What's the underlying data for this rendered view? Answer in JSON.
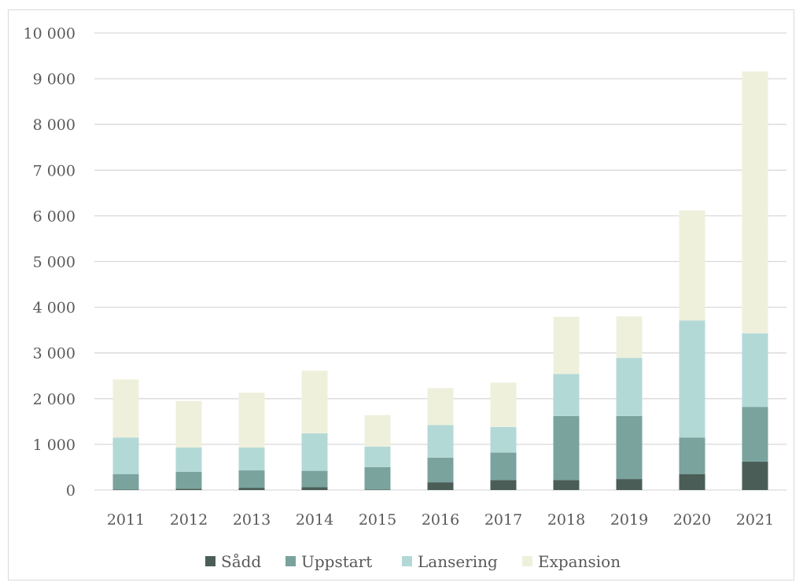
{
  "chart_data": {
    "type": "bar",
    "stacked": true,
    "categories": [
      "2011",
      "2012",
      "2013",
      "2014",
      "2015",
      "2016",
      "2017",
      "2018",
      "2019",
      "2020",
      "2021"
    ],
    "series": [
      {
        "name": "Sådd",
        "color": "#4a5e57",
        "values": [
          10,
          30,
          50,
          60,
          10,
          170,
          220,
          220,
          240,
          350,
          620
        ]
      },
      {
        "name": "Uppstart",
        "color": "#7aa39e",
        "values": [
          340,
          370,
          380,
          360,
          490,
          540,
          600,
          1400,
          1380,
          800,
          1200
        ]
      },
      {
        "name": "Lansering",
        "color": "#b3d9d7",
        "values": [
          800,
          530,
          500,
          820,
          450,
          710,
          560,
          920,
          1270,
          2560,
          1610
        ]
      },
      {
        "name": "Expansion",
        "color": "#eef0dc",
        "values": [
          1270,
          1020,
          1200,
          1370,
          690,
          810,
          970,
          1250,
          910,
          2410,
          5730
        ]
      }
    ],
    "ylim": [
      0,
      10000
    ],
    "yticks": [
      0,
      1000,
      2000,
      3000,
      4000,
      5000,
      6000,
      7000,
      8000,
      9000,
      10000
    ],
    "ytick_labels": [
      "0",
      "1 000",
      "2 000",
      "3 000",
      "4 000",
      "5 000",
      "6 000",
      "7 000",
      "8 000",
      "9 000",
      "10 000"
    ],
    "title": "",
    "xlabel": "",
    "ylabel": "",
    "grid": "horizontal",
    "legend_position": "bottom",
    "gridline_color": "#d9d9d9"
  }
}
